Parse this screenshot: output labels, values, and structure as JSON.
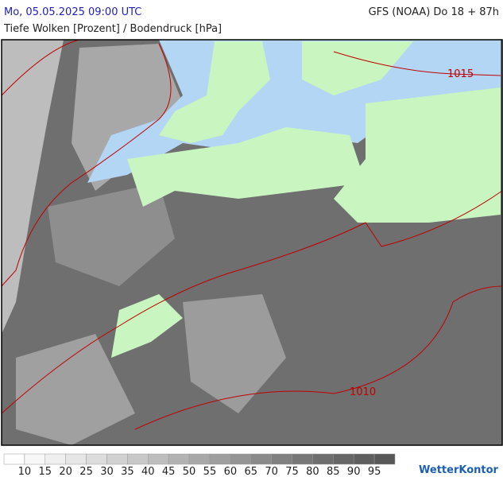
{
  "header": {
    "datetime": "Mo, 05.05.2025 09:00 UTC",
    "model": "GFS (NOAA) Do 18 + 87h",
    "subtitle": "Tiefe Wolken [Prozent] / Bodendruck [hPa]"
  },
  "map": {
    "isobar_labels": [
      "1015",
      "1010"
    ]
  },
  "legend": {
    "labels": [
      10,
      15,
      20,
      25,
      30,
      35,
      40,
      45,
      50,
      55,
      60,
      65,
      70,
      75,
      80,
      85,
      90,
      95
    ],
    "colors": [
      "#ffffff",
      "#f7f7f7",
      "#efefef",
      "#e6e6e6",
      "#dcdcdc",
      "#d2d2d2",
      "#c8c8c8",
      "#bdbdbd",
      "#b2b2b2",
      "#a8a8a8",
      "#9e9e9e",
      "#949494",
      "#8a8a8a",
      "#808080",
      "#777777",
      "#6e6e6e",
      "#666666",
      "#5f5f5f",
      "#585858"
    ]
  },
  "logo": "WetterKontor"
}
